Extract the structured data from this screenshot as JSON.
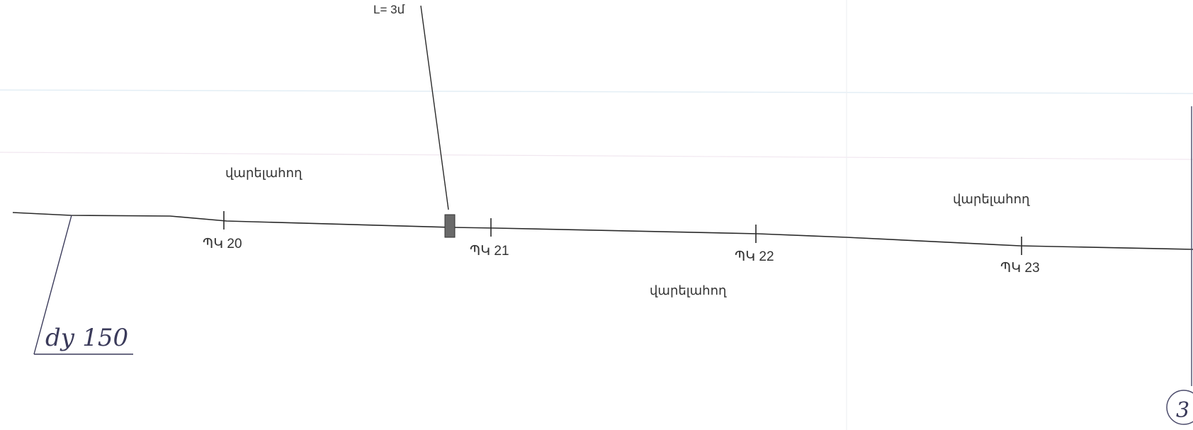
{
  "drawing": {
    "length_label": "L= 3մ",
    "road_labels": [
      "վարելահող",
      "վարելահող",
      "վարելահող"
    ],
    "pickets": [
      "ՊԿ 20",
      "ՊԿ 21",
      "ՊԿ 22",
      "ՊԿ 23"
    ],
    "pipe_note": "dу 150",
    "sheet_number": "3"
  }
}
